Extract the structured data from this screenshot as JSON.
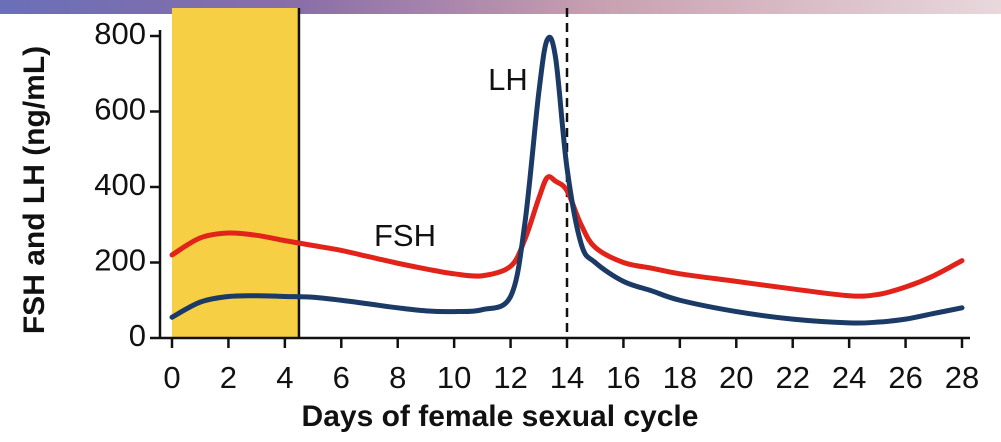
{
  "chart_data": {
    "type": "line",
    "x_label": "Days of female sexual cycle",
    "y_label": "FSH and LH (ng/mL)",
    "x": [
      0,
      1,
      2,
      3,
      4,
      5,
      6,
      7,
      8,
      9,
      10,
      11,
      12,
      12.5,
      13,
      13.3,
      13.6,
      14,
      14.5,
      15,
      16,
      17,
      18,
      20,
      22,
      24,
      25,
      26,
      27,
      28
    ],
    "series": [
      {
        "name": "FSH",
        "color": "#e2231a",
        "values": [
          220,
          265,
          278,
          272,
          258,
          245,
          232,
          215,
          198,
          183,
          170,
          165,
          190,
          260,
          370,
          425,
          415,
          390,
          300,
          240,
          200,
          185,
          170,
          150,
          130,
          112,
          115,
          135,
          165,
          205
        ]
      },
      {
        "name": "LH",
        "color": "#1c3a66",
        "values": [
          55,
          95,
          110,
          112,
          110,
          108,
          100,
          90,
          80,
          72,
          70,
          75,
          110,
          300,
          650,
          790,
          740,
          450,
          250,
          200,
          150,
          125,
          100,
          70,
          50,
          40,
          42,
          50,
          65,
          80
        ]
      }
    ],
    "xlim": [
      0,
      28
    ],
    "xticks": [
      0,
      2,
      4,
      6,
      8,
      10,
      12,
      14,
      16,
      18,
      20,
      22,
      24,
      26,
      28
    ],
    "ylim": [
      0,
      800
    ],
    "yticks": [
      0,
      200,
      400,
      600,
      800
    ],
    "highlight_range": [
      0,
      4.5
    ],
    "highlight_color": "#f7cf45",
    "vline": 14
  }
}
